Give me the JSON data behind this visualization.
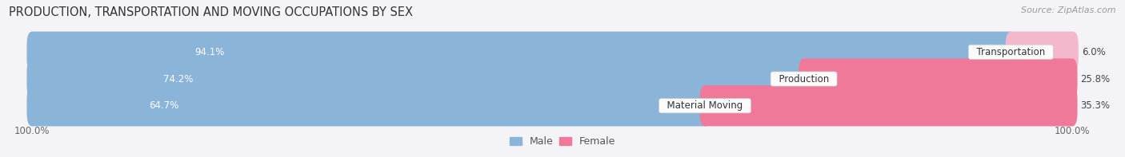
{
  "title": "PRODUCTION, TRANSPORTATION AND MOVING OCCUPATIONS BY SEX",
  "source_text": "Source: ZipAtlas.com",
  "categories": [
    "Transportation",
    "Production",
    "Material Moving"
  ],
  "male_values": [
    94.1,
    74.2,
    64.7
  ],
  "female_values": [
    6.0,
    25.8,
    35.3
  ],
  "male_color": "#8ab4d8",
  "female_color_transportation": "#f4b8cc",
  "female_color": "#f07898",
  "bar_bg_color": "#e2e2ea",
  "title_fontsize": 10.5,
  "source_fontsize": 8,
  "tick_label_fontsize": 8.5,
  "legend_fontsize": 9,
  "bar_height": 0.52,
  "background_color": "#f4f4f8",
  "male_label_color": "white",
  "female_label_color": "#444444",
  "category_label_color": "#333333"
}
